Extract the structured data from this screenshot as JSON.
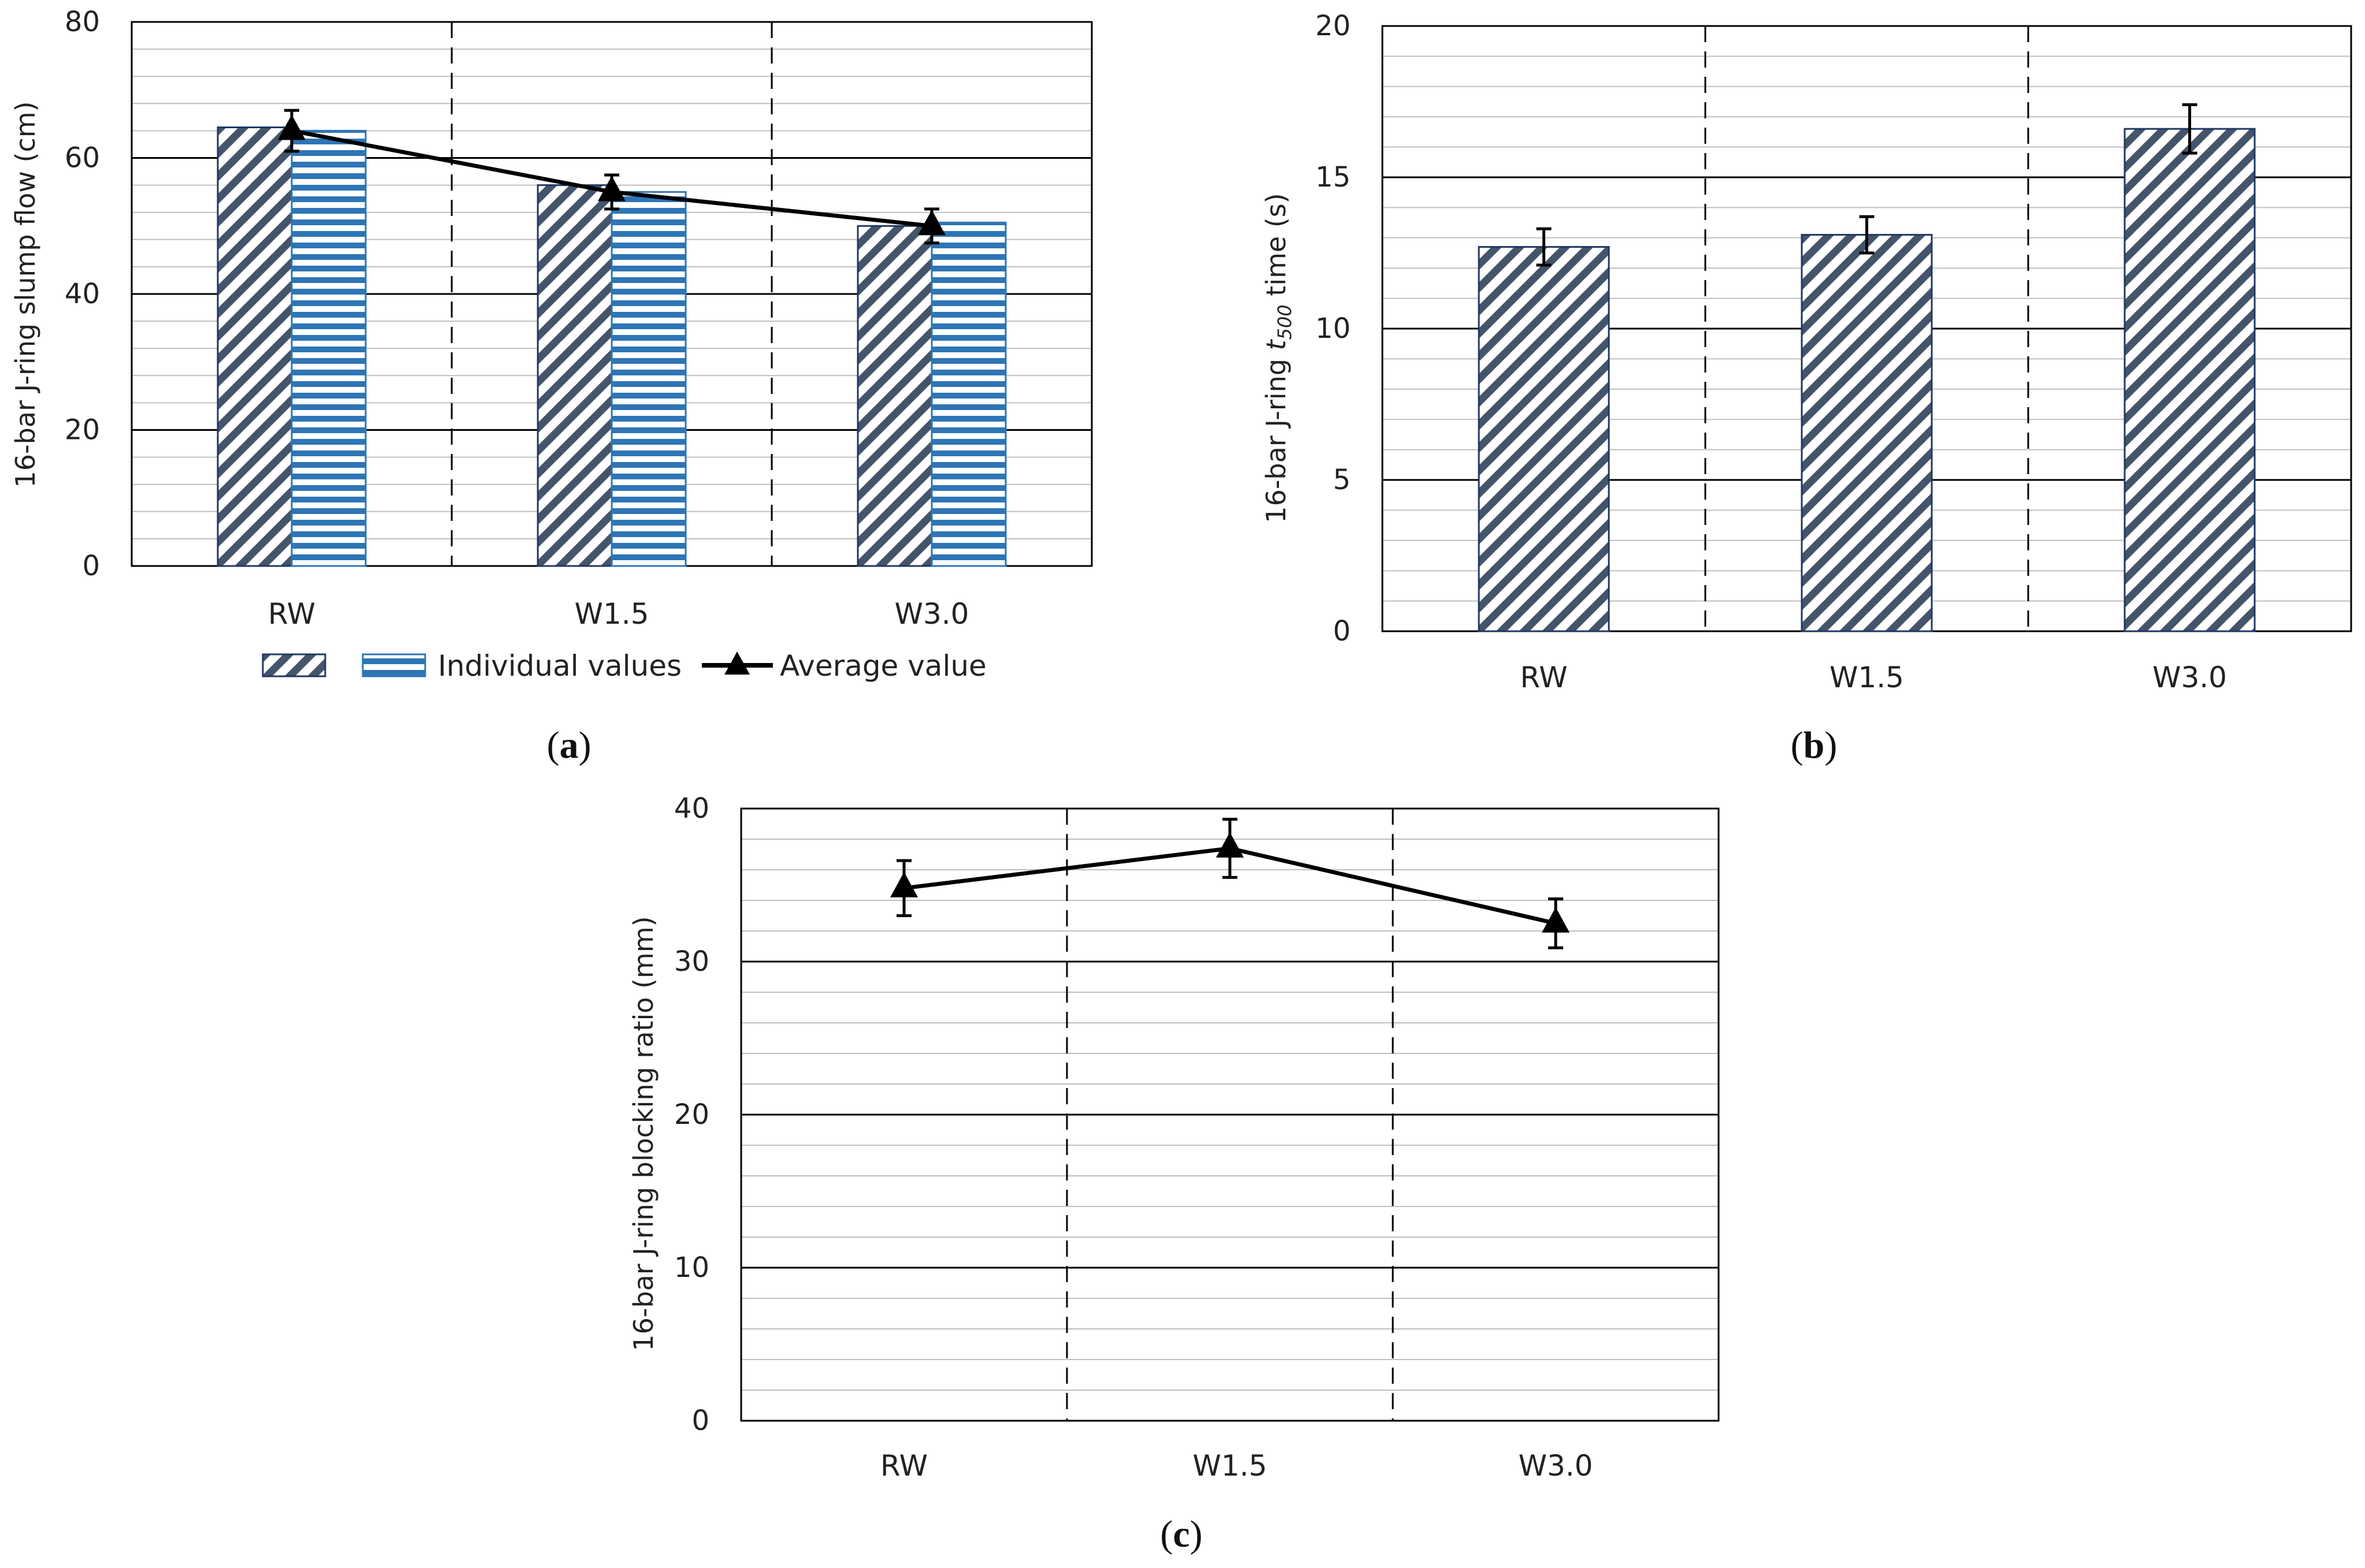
{
  "figure": {
    "categories": [
      "RW",
      "W1.5",
      "W3.0"
    ]
  },
  "chart_data": [
    {
      "id": "a",
      "type": "bar",
      "panel_label": "a",
      "title": "",
      "xlabel": "",
      "ylabel": "16-bar J-ring slump flow (cm)",
      "ylim": [
        0,
        80
      ],
      "major_ticks": [
        0,
        20,
        40,
        60,
        80
      ],
      "minor_step": 4,
      "categories": [
        "RW",
        "W1.5",
        "W3.0"
      ],
      "series": [
        {
          "name": "",
          "kind": "bar",
          "pattern": "diagonal",
          "values": [
            64.5,
            56.0,
            50.0
          ]
        },
        {
          "name": "Individual values",
          "kind": "bar",
          "pattern": "horizontal",
          "values": [
            64.0,
            55.0,
            50.5
          ]
        },
        {
          "name": "Average value",
          "kind": "line",
          "marker": "triangle",
          "values": [
            64.0,
            55.0,
            50.0
          ],
          "error": [
            3.0,
            2.5,
            2.5
          ]
        }
      ],
      "legend": {
        "placement": "bottom",
        "entries": [
          "",
          "Individual values",
          "Average value"
        ]
      }
    },
    {
      "id": "b",
      "type": "bar",
      "panel_label": "b",
      "title": "",
      "xlabel": "",
      "ylabel_parts": [
        "16-bar J-ring ",
        "t",
        "500",
        " time (s)"
      ],
      "ylim": [
        0,
        20
      ],
      "major_ticks": [
        0,
        5,
        10,
        15,
        20
      ],
      "minor_step": 1,
      "categories": [
        "RW",
        "W1.5",
        "W3.0"
      ],
      "series": [
        {
          "name": "",
          "kind": "bar",
          "pattern": "diagonal",
          "values": [
            12.7,
            13.1,
            16.6
          ],
          "error": [
            0.6,
            0.6,
            0.8
          ]
        }
      ]
    },
    {
      "id": "c",
      "type": "line",
      "panel_label": "c",
      "title": "",
      "xlabel": "",
      "ylabel": "16-bar J-ring blocking ratio (mm)",
      "ylim": [
        0,
        40
      ],
      "major_ticks": [
        0,
        10,
        20,
        30,
        40
      ],
      "minor_step": 2,
      "categories": [
        "RW",
        "W1.5",
        "W3.0"
      ],
      "series": [
        {
          "name": "",
          "kind": "line",
          "marker": "triangle",
          "values": [
            34.8,
            37.4,
            32.5
          ],
          "error": [
            1.8,
            1.9,
            1.6
          ]
        }
      ]
    }
  ],
  "colors": {
    "grid_major": "#000000",
    "grid_minor": "#bfbfbf",
    "bar_stroke": "#1f3864",
    "bar_diag": "#44546a",
    "bar_horiz": "#2e75b6",
    "line": "#000000"
  }
}
